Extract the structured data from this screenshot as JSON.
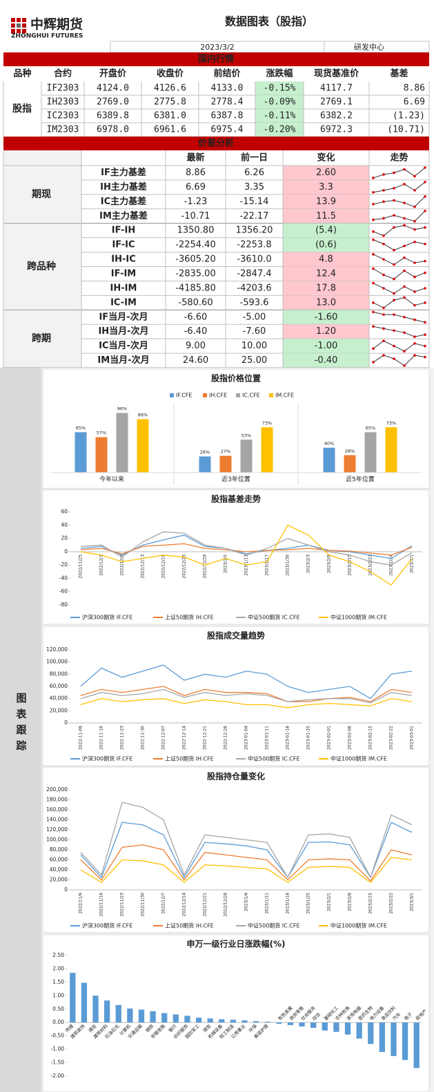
{
  "header": {
    "logo_cn": "中辉期货",
    "logo_en": "ZHONGHUI FUTURES",
    "title": "数据图表（股指）",
    "date": "2023/3/2",
    "dept": "研发中心"
  },
  "market": {
    "section": "国内行情",
    "columns": [
      "品种",
      "合约",
      "开盘价",
      "收盘价",
      "前结价",
      "涨跌幅",
      "现货基准价",
      "基差"
    ],
    "group": "股指",
    "rows": [
      [
        "IF2303",
        "4124.0",
        "4126.6",
        "4133.0",
        "-0.15%",
        "4117.7",
        "8.86"
      ],
      [
        "IH2303",
        "2769.0",
        "2775.8",
        "2778.4",
        "-0.09%",
        "2769.1",
        "6.69"
      ],
      [
        "IC2303",
        "6389.8",
        "6381.0",
        "6387.8",
        "-0.11%",
        "6382.2",
        "(1.23)"
      ],
      [
        "IM2303",
        "6978.0",
        "6961.6",
        "6975.4",
        "-0.20%",
        "6972.3",
        "(10.71)"
      ]
    ]
  },
  "spread": {
    "section": "价差分析",
    "columns": [
      "最新",
      "前一日",
      "变化",
      "走势"
    ],
    "groups": [
      {
        "name": "期现",
        "rows": [
          {
            "label": "IF主力基差",
            "latest": "8.86",
            "prev": "6.26",
            "change": "2.60",
            "trend": [
              2,
              4,
              5,
              7,
              3,
              8
            ]
          },
          {
            "label": "IH主力基差",
            "latest": "6.69",
            "prev": "3.35",
            "change": "3.3",
            "trend": [
              2,
              3,
              4,
              6,
              3,
              7
            ]
          },
          {
            "label": "IC主力基差",
            "latest": "-1.23",
            "prev": "-15.14",
            "change": "13.9",
            "trend": [
              3,
              5,
              6,
              4,
              1,
              9
            ]
          },
          {
            "label": "IM主力基差",
            "latest": "-10.71",
            "prev": "-22.17",
            "change": "11.5",
            "trend": [
              2,
              3,
              5,
              3,
              1,
              8
            ]
          }
        ]
      },
      {
        "name": "跨品种",
        "rows": [
          {
            "label": "IF-IH",
            "latest": "1350.80",
            "prev": "1356.20",
            "change": "(5.4)",
            "trend": [
              6,
              4,
              8,
              9,
              7,
              8
            ]
          },
          {
            "label": "IF-IC",
            "latest": "-2254.40",
            "prev": "-2253.8",
            "change": "(0.6)",
            "trend": [
              8,
              6,
              3,
              5,
              7,
              6
            ]
          },
          {
            "label": "IH-IC",
            "latest": "-3605.20",
            "prev": "-3610.0",
            "change": "4.8",
            "trend": [
              8,
              5,
              2,
              6,
              3,
              4
            ]
          },
          {
            "label": "IF-IM",
            "latest": "-2835.00",
            "prev": "-2847.4",
            "change": "12.4",
            "trend": [
              7,
              4,
              2,
              6,
              3,
              5
            ]
          },
          {
            "label": "IH-IM",
            "latest": "-4185.80",
            "prev": "-4203.6",
            "change": "17.8",
            "trend": [
              8,
              5,
              2,
              6,
              3,
              5
            ]
          },
          {
            "label": "IC-IM",
            "latest": "-580.60",
            "prev": "-593.6",
            "change": "13.0",
            "trend": [
              5,
              3,
              6,
              7,
              4,
              5
            ]
          }
        ]
      },
      {
        "name": "跨期",
        "rows": [
          {
            "label": "IF当月-次月",
            "latest": "-6.60",
            "prev": "-5.00",
            "change": "-1.60",
            "trend": [
              8,
              7,
              7,
              6,
              5,
              4
            ]
          },
          {
            "label": "IH当月-次月",
            "latest": "-6.40",
            "prev": "-7.60",
            "change": "1.20",
            "trend": [
              8,
              7,
              6,
              5,
              3,
              4
            ]
          },
          {
            "label": "IC当月-次月",
            "latest": "9.00",
            "prev": "10.00",
            "change": "-1.00",
            "trend": [
              5,
              8,
              6,
              4,
              7,
              6
            ]
          },
          {
            "label": "IM当月-次月",
            "latest": "24.60",
            "prev": "25.00",
            "change": "-0.40",
            "trend": [
              4,
              8,
              6,
              2,
              8,
              7
            ]
          }
        ]
      }
    ]
  },
  "side_label": "图表跟踪",
  "chart_data": [
    {
      "type": "bar",
      "title": "股指价格位置",
      "categories": [
        "今年以来",
        "近3年位置",
        "近5年位置"
      ],
      "ylim": [
        0,
        100
      ],
      "series": [
        {
          "name": "IF.CFE",
          "color": "#5b9bd5",
          "values": [
            65,
            26,
            40
          ],
          "value_labels": [
            "65%",
            "26%",
            "40%"
          ]
        },
        {
          "name": "IH.CFE",
          "color": "#ed7d31",
          "values": [
            57,
            27,
            28
          ],
          "value_labels": [
            "57%",
            "27%",
            "28%"
          ]
        },
        {
          "name": "IC.CFE",
          "color": "#a5a5a5",
          "values": [
            96,
            53,
            65
          ],
          "value_labels": [
            "96%",
            "53%",
            "65%"
          ]
        },
        {
          "name": "IM.CFE",
          "color": "#ffc000",
          "values": [
            86,
            73,
            73
          ],
          "value_labels": [
            "86%",
            "73%",
            "73%"
          ]
        }
      ]
    },
    {
      "type": "line",
      "title": "股指基差走势",
      "categories": [
        "2022/11/25",
        "2022/12/1",
        "2022/12/7",
        "2022/12/13",
        "2022/12/19",
        "2022/12/23",
        "2022/12/29",
        "2023/1/5",
        "2023/1/11",
        "2023/1/17",
        "2023/1/30",
        "2023/2/3",
        "2023/2/9",
        "2023/2/15",
        "2023/2/21",
        "2023/2/24",
        "2023/3/1"
      ],
      "ylim": [
        -80,
        60
      ],
      "yticks": [
        -80,
        -60,
        -40,
        -20,
        0,
        20,
        40,
        60
      ],
      "series": [
        {
          "name": "沪深300期货 IF.CFE",
          "color": "#5b9bd5",
          "values": [
            5,
            8,
            -5,
            10,
            18,
            25,
            8,
            5,
            -3,
            2,
            5,
            10,
            2,
            0,
            -5,
            -10,
            8.86
          ]
        },
        {
          "name": "上证50期货 IH.CFE",
          "color": "#ed7d31",
          "values": [
            3,
            5,
            -3,
            8,
            10,
            12,
            5,
            3,
            0,
            2,
            3,
            5,
            2,
            1,
            -2,
            -5,
            6.69
          ]
        },
        {
          "name": "中证500期货 IC.CFE",
          "color": "#a5a5a5",
          "values": [
            8,
            10,
            -8,
            15,
            30,
            28,
            10,
            5,
            -5,
            5,
            20,
            10,
            0,
            -5,
            -15,
            -20,
            -1.23
          ]
        },
        {
          "name": "中证1000期货 IM.CFE",
          "color": "#ffc000",
          "values": [
            0,
            -5,
            -15,
            -10,
            -5,
            -8,
            -20,
            -10,
            -20,
            -15,
            40,
            25,
            -5,
            -15,
            -30,
            -50,
            -10.71
          ]
        }
      ]
    },
    {
      "type": "line",
      "title": "股指成交量趋势",
      "categories": [
        "2022-11-09",
        "2022-11-16",
        "2022-11-23",
        "2022-11-30",
        "2022-12-07",
        "2022-12-14",
        "2022-12-21",
        "2022-12-28",
        "2023-01-04",
        "2023-01-11",
        "2023-01-18",
        "2023-01-25",
        "2023-02-01",
        "2023-02-08",
        "2023-02-15",
        "2023-02-22",
        "2023-03-01"
      ],
      "ylim": [
        0,
        120000
      ],
      "yticks": [
        0,
        {
          "value": 20000,
          "label": "20,000"
        },
        {
          "value": 40000,
          "label": "40,000"
        },
        {
          "value": 60000,
          "label": "60,000"
        },
        {
          "value": 80000,
          "label": "80,000"
        },
        {
          "value": 100000,
          "label": "100,000"
        },
        {
          "value": 120000,
          "label": "120,000"
        }
      ],
      "series": [
        {
          "name": "沪深300期货 IF.CFE",
          "color": "#5b9bd5",
          "values": [
            60000,
            90000,
            75000,
            85000,
            95000,
            70000,
            80000,
            75000,
            85000,
            80000,
            60000,
            50000,
            55000,
            60000,
            40000,
            80000,
            85000
          ]
        },
        {
          "name": "上证50期货 IH.CFE",
          "color": "#ed7d31",
          "values": [
            45000,
            55000,
            50000,
            55000,
            60000,
            45000,
            55000,
            50000,
            50000,
            48000,
            35000,
            35000,
            40000,
            42000,
            35000,
            55000,
            50000
          ]
        },
        {
          "name": "中证500期货 IC.CFE",
          "color": "#a5a5a5",
          "values": [
            40000,
            50000,
            45000,
            48000,
            55000,
            42000,
            50000,
            45000,
            48000,
            45000,
            35000,
            38000,
            40000,
            40000,
            33000,
            50000,
            45000
          ]
        },
        {
          "name": "中证1000期货 IM.CFE",
          "color": "#ffc000",
          "values": [
            30000,
            40000,
            35000,
            38000,
            40000,
            32000,
            38000,
            35000,
            30000,
            30000,
            25000,
            30000,
            32000,
            30000,
            28000,
            40000,
            35000
          ]
        }
      ]
    },
    {
      "type": "line",
      "title": "股指持仓量变化",
      "categories": [
        "2022/11/9",
        "2022/11/16",
        "2022/11/23",
        "2022/11/30",
        "2022/12/7",
        "2022/12/14",
        "2022/12/21",
        "2022/12/28",
        "2023/1/4",
        "2023/1/11",
        "2023/1/18",
        "2023/1/25",
        "2023/2/1",
        "2023/2/8",
        "2023/2/15",
        "2023/2/22",
        "2023/3/1"
      ],
      "ylim": [
        0,
        200000
      ],
      "yticks": [
        0,
        {
          "value": 20000,
          "label": "20,000"
        },
        {
          "value": 40000,
          "label": "40,000"
        },
        {
          "value": 60000,
          "label": "60,000"
        },
        {
          "value": 80000,
          "label": "80,000"
        },
        {
          "value": 100000,
          "label": "100,000"
        },
        {
          "value": 120000,
          "label": "120,000"
        },
        {
          "value": 140000,
          "label": "140,000"
        },
        {
          "value": 160000,
          "label": "160,000"
        },
        {
          "value": 180000,
          "label": "180,000"
        },
        {
          "value": 200000,
          "label": "200,000"
        }
      ],
      "series": [
        {
          "name": "沪深300期货 IF.CFE",
          "color": "#5b9bd5",
          "values": [
            70000,
            25000,
            135000,
            130000,
            110000,
            25000,
            95000,
            92000,
            88000,
            80000,
            25000,
            95000,
            96000,
            90000,
            25000,
            135000,
            115000
          ]
        },
        {
          "name": "上证50期货 IH.CFE",
          "color": "#ed7d31",
          "values": [
            60000,
            20000,
            85000,
            90000,
            80000,
            20000,
            75000,
            70000,
            65000,
            60000,
            20000,
            60000,
            62000,
            60000,
            18000,
            80000,
            70000
          ]
        },
        {
          "name": "中证500期货 IC.CFE",
          "color": "#a5a5a5",
          "values": [
            75000,
            30000,
            175000,
            165000,
            140000,
            30000,
            110000,
            105000,
            100000,
            95000,
            25000,
            110000,
            112000,
            105000,
            25000,
            150000,
            130000
          ]
        },
        {
          "name": "中证1000期货 IM.CFE",
          "color": "#ffc000",
          "values": [
            40000,
            15000,
            60000,
            58000,
            50000,
            15000,
            50000,
            48000,
            45000,
            42000,
            15000,
            45000,
            47000,
            45000,
            15000,
            65000,
            60000
          ]
        }
      ]
    },
    {
      "type": "bar",
      "title": "申万一级行业日涨跌幅(%)",
      "color": "#5b9bd5",
      "categories": [
        "传媒",
        "建筑装饰",
        "通信",
        "建筑材料",
        "石油石化",
        "计算机",
        "交通运输",
        "钢铁",
        "非银金融",
        "银行",
        "纺织服饰",
        "国防军工",
        "煤炭",
        "机械设备",
        "轻工制造",
        "公用事业",
        "环保",
        "美容护理",
        "有色金属",
        "商贸零售",
        "社会服务",
        "综合",
        "基础化工",
        "农林牧渔",
        "家用电器",
        "医药生物",
        "电力设备",
        "食品饮料",
        "汽车",
        "电子",
        "房地产"
      ],
      "values": [
        1.85,
        1.48,
        1.0,
        0.82,
        0.65,
        0.52,
        0.48,
        0.42,
        0.35,
        0.3,
        0.25,
        0.18,
        0.15,
        0.12,
        0.1,
        0.08,
        0.05,
        0.03,
        -0.05,
        -0.1,
        -0.15,
        -0.2,
        -0.3,
        -0.35,
        -0.45,
        -0.6,
        -0.8,
        -1.1,
        -1.25,
        -1.4,
        -1.7
      ],
      "ylim": [
        -2,
        2.5
      ],
      "yticks": [
        {
          "value": -2,
          "label": "-2.00"
        },
        {
          "value": -1.5,
          "label": "-1.50"
        },
        {
          "value": -1,
          "label": "-1.00"
        },
        {
          "value": -0.5,
          "label": "-0.50"
        },
        {
          "value": 0,
          "label": "0.00"
        },
        {
          "value": 0.5,
          "label": "0.50"
        },
        {
          "value": 1,
          "label": "1.00"
        },
        {
          "value": 1.5,
          "label": "1.50"
        },
        {
          "value": 2,
          "label": "2.00"
        },
        {
          "value": 2.5,
          "label": "2.50"
        }
      ]
    }
  ]
}
